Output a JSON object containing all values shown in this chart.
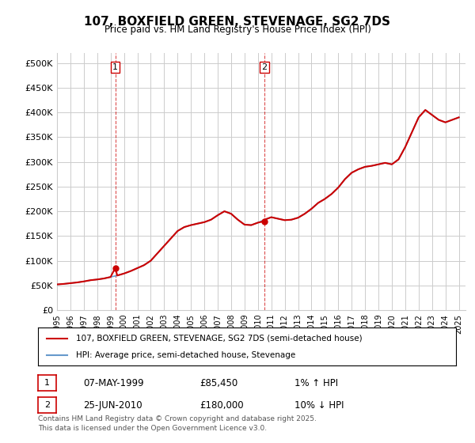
{
  "title": "107, BOXFIELD GREEN, STEVENAGE, SG2 7DS",
  "subtitle": "Price paid vs. HM Land Registry's House Price Index (HPI)",
  "ylabel_ticks": [
    "£0",
    "£50K",
    "£100K",
    "£150K",
    "£200K",
    "£250K",
    "£300K",
    "£350K",
    "£400K",
    "£450K",
    "£500K"
  ],
  "ytick_values": [
    0,
    50000,
    100000,
    150000,
    200000,
    250000,
    300000,
    350000,
    400000,
    450000,
    500000
  ],
  "ylim": [
    0,
    520000
  ],
  "xlim_start": 1995.0,
  "xlim_end": 2025.5,
  "sale1_x": 1999.35,
  "sale1_y": 85450,
  "sale1_label": "1",
  "sale1_date": "07-MAY-1999",
  "sale1_price": "£85,450",
  "sale1_hpi": "1% ↑ HPI",
  "sale2_x": 2010.48,
  "sale2_y": 180000,
  "sale2_label": "2",
  "sale2_date": "25-JUN-2010",
  "sale2_price": "£180,000",
  "sale2_hpi": "10% ↓ HPI",
  "line1_color": "#cc0000",
  "line2_color": "#6699cc",
  "dashed_vline_color": "#cc0000",
  "grid_color": "#cccccc",
  "background_color": "#ffffff",
  "legend_label1": "107, BOXFIELD GREEN, STEVENAGE, SG2 7DS (semi-detached house)",
  "legend_label2": "HPI: Average price, semi-detached house, Stevenage",
  "footnote": "Contains HM Land Registry data © Crown copyright and database right 2025.\nThis data is licensed under the Open Government Licence v3.0.",
  "hpi_years": [
    1995.0,
    1995.5,
    1996.0,
    1996.5,
    1997.0,
    1997.5,
    1998.0,
    1998.5,
    1999.0,
    1999.5,
    2000.0,
    2000.5,
    2001.0,
    2001.5,
    2002.0,
    2002.5,
    2003.0,
    2003.5,
    2004.0,
    2004.5,
    2005.0,
    2005.5,
    2006.0,
    2006.5,
    2007.0,
    2007.5,
    2008.0,
    2008.5,
    2009.0,
    2009.5,
    2010.0,
    2010.5,
    2011.0,
    2011.5,
    2012.0,
    2012.5,
    2013.0,
    2013.5,
    2014.0,
    2014.5,
    2015.0,
    2015.5,
    2016.0,
    2016.5,
    2017.0,
    2017.5,
    2018.0,
    2018.5,
    2019.0,
    2019.5,
    2020.0,
    2020.5,
    2021.0,
    2021.5,
    2022.0,
    2022.5,
    2023.0,
    2023.5,
    2024.0,
    2024.5,
    2025.0
  ],
  "hpi_values": [
    52000,
    53000,
    54500,
    56000,
    58000,
    60500,
    62000,
    64000,
    67000,
    70000,
    74000,
    79000,
    85000,
    91000,
    100000,
    115000,
    130000,
    145000,
    160000,
    168000,
    172000,
    175000,
    178000,
    183000,
    192000,
    200000,
    195000,
    183000,
    173000,
    172000,
    177000,
    183000,
    188000,
    185000,
    182000,
    183000,
    187000,
    195000,
    205000,
    217000,
    225000,
    235000,
    248000,
    265000,
    278000,
    285000,
    290000,
    292000,
    295000,
    298000,
    295000,
    305000,
    330000,
    360000,
    390000,
    405000,
    395000,
    385000,
    380000,
    385000,
    390000
  ],
  "price_years": [
    1995.0,
    1995.5,
    1996.0,
    1996.5,
    1997.0,
    1997.5,
    1998.0,
    1998.5,
    1999.0,
    1999.35,
    1999.5,
    2000.0,
    2000.5,
    2001.0,
    2001.5,
    2002.0,
    2002.5,
    2003.0,
    2003.5,
    2004.0,
    2004.5,
    2005.0,
    2005.5,
    2006.0,
    2006.5,
    2007.0,
    2007.5,
    2008.0,
    2008.5,
    2009.0,
    2009.5,
    2010.0,
    2010.48,
    2010.5,
    2011.0,
    2011.5,
    2012.0,
    2012.5,
    2013.0,
    2013.5,
    2014.0,
    2014.5,
    2015.0,
    2015.5,
    2016.0,
    2016.5,
    2017.0,
    2017.5,
    2018.0,
    2018.5,
    2019.0,
    2019.5,
    2020.0,
    2020.5,
    2021.0,
    2021.5,
    2022.0,
    2022.5,
    2023.0,
    2023.5,
    2024.0,
    2024.5,
    2025.0
  ],
  "price_values": [
    52000,
    53000,
    54500,
    56000,
    58000,
    60500,
    62000,
    64000,
    67000,
    85450,
    70000,
    74000,
    79000,
    85000,
    91000,
    100000,
    115000,
    130000,
    145000,
    160000,
    168000,
    172000,
    175000,
    178000,
    183000,
    192000,
    200000,
    195000,
    183000,
    173000,
    172000,
    177000,
    180000,
    183000,
    188000,
    185000,
    182000,
    183000,
    187000,
    195000,
    205000,
    217000,
    225000,
    235000,
    248000,
    265000,
    278000,
    285000,
    290000,
    292000,
    295000,
    298000,
    295000,
    305000,
    330000,
    360000,
    390000,
    405000,
    395000,
    385000,
    380000,
    385000,
    390000
  ],
  "xtick_years": [
    1995,
    1996,
    1997,
    1998,
    1999,
    2000,
    2001,
    2002,
    2003,
    2004,
    2005,
    2006,
    2007,
    2008,
    2009,
    2010,
    2011,
    2012,
    2013,
    2014,
    2015,
    2016,
    2017,
    2018,
    2019,
    2020,
    2021,
    2022,
    2023,
    2024,
    2025
  ]
}
